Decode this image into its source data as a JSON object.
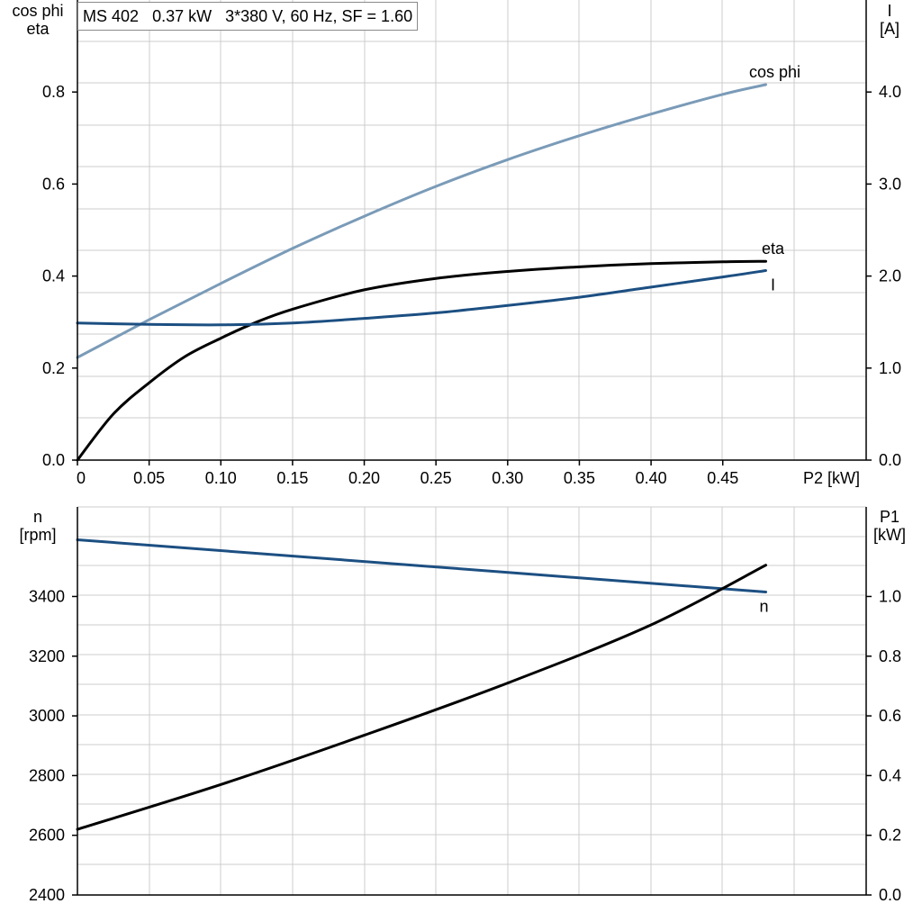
{
  "info_box": {
    "model": "MS 402",
    "rating": "0.37 kW",
    "supply": "3*380 V, 60 Hz, SF = 1.60"
  },
  "colors": {
    "cos_phi": "#7a9bb8",
    "eta": "#000000",
    "current": "#1c4f82",
    "speed": "#1c4f82",
    "p1": "#000000",
    "grid": "#cccccc",
    "axis": "#000000"
  },
  "chart_data": [
    {
      "type": "line",
      "x_title": "P2 [kW]",
      "x_ticks": [
        "0",
        "0.05",
        "0.10",
        "0.15",
        "0.20",
        "0.25",
        "0.30",
        "0.35",
        "0.40",
        "0.45"
      ],
      "xlim": [
        0,
        0.55
      ],
      "left_axis_title": [
        "cos phi",
        "eta"
      ],
      "left_ticks": [
        "0.0",
        "0.2",
        "0.4",
        "0.6",
        "0.8"
      ],
      "left_ylim": [
        0,
        1.0
      ],
      "right_axis_title": [
        "I",
        "[A]"
      ],
      "right_ticks": [
        "0.0",
        "1.0",
        "2.0",
        "3.0",
        "4.0"
      ],
      "right_ylim": [
        0,
        5.0
      ],
      "grid": true,
      "series": [
        {
          "name": "cos phi",
          "axis": "left",
          "color": "#7a9bb8",
          "x": [
            0,
            0.05,
            0.1,
            0.15,
            0.2,
            0.25,
            0.3,
            0.35,
            0.4,
            0.45,
            0.48
          ],
          "y": [
            0.223,
            0.305,
            0.384,
            0.46,
            0.53,
            0.595,
            0.653,
            0.705,
            0.752,
            0.795,
            0.816
          ]
        },
        {
          "name": "eta",
          "axis": "left",
          "color": "#000000",
          "x": [
            0,
            0.025,
            0.05,
            0.075,
            0.1,
            0.125,
            0.15,
            0.2,
            0.25,
            0.3,
            0.35,
            0.4,
            0.45,
            0.48
          ],
          "y": [
            0.0,
            0.1,
            0.168,
            0.225,
            0.265,
            0.3,
            0.328,
            0.37,
            0.395,
            0.41,
            0.42,
            0.427,
            0.431,
            0.432
          ]
        },
        {
          "name": "I",
          "axis": "right",
          "color": "#1c4f82",
          "x": [
            0,
            0.05,
            0.1,
            0.15,
            0.2,
            0.25,
            0.3,
            0.35,
            0.4,
            0.45,
            0.48
          ],
          "y": [
            1.49,
            1.475,
            1.47,
            1.49,
            1.54,
            1.6,
            1.68,
            1.77,
            1.88,
            1.99,
            2.06
          ]
        }
      ]
    },
    {
      "type": "line",
      "x_ticks": [],
      "xlim": [
        0,
        0.55
      ],
      "left_axis_title": [
        "n",
        "[rpm]"
      ],
      "left_ticks": [
        "2400",
        "2600",
        "2800",
        "3000",
        "3200",
        "3400"
      ],
      "left_ylim": [
        2400,
        3700
      ],
      "right_axis_title": [
        "P1",
        "[kW]"
      ],
      "right_ticks": [
        "0.0",
        "0.2",
        "0.4",
        "0.6",
        "0.8",
        "1.0"
      ],
      "right_ylim": [
        0,
        1.3
      ],
      "grid": true,
      "series": [
        {
          "name": "n",
          "axis": "left",
          "color": "#1c4f82",
          "x": [
            0,
            0.48
          ],
          "y": [
            3590,
            3415
          ]
        },
        {
          "name": "",
          "axis": "right",
          "color": "#000000",
          "x": [
            0,
            0.1,
            0.2,
            0.3,
            0.4,
            0.48
          ],
          "y": [
            0.22,
            0.37,
            0.535,
            0.71,
            0.905,
            1.105
          ]
        }
      ]
    }
  ]
}
